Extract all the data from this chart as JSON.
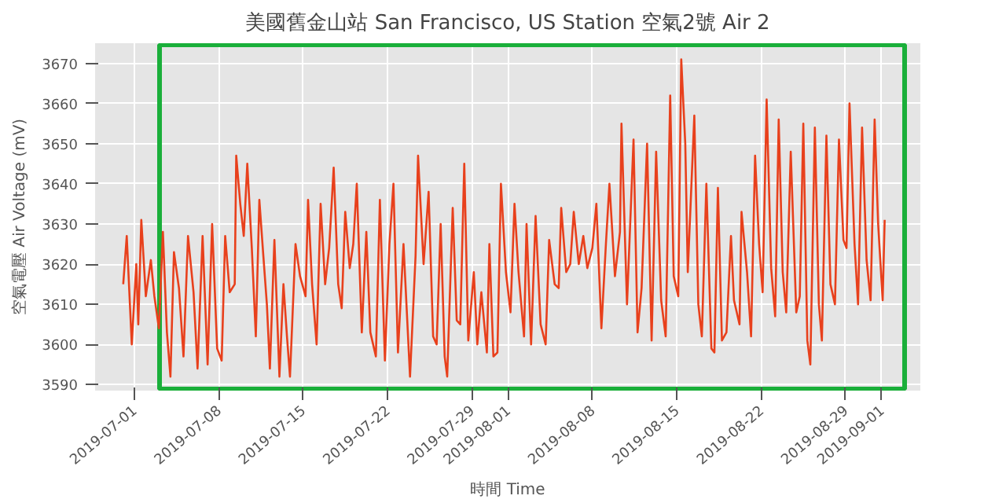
{
  "chart_data": {
    "type": "line",
    "title": "美國舊金山站 San Francisco, US Station 空氣2號 Air 2",
    "xlabel": "時間 Time",
    "ylabel": "空氣電壓 Air Voltage (mV)",
    "x": [
      "2019-06-30T02:00",
      "2019-06-30T09:00",
      "2019-06-30T19:00",
      "2019-07-01T04:00",
      "2019-07-01T08:00",
      "2019-07-01T14:00",
      "2019-07-01T23:00",
      "2019-07-02T09:00",
      "2019-07-02T16:00",
      "2019-07-03T01:00",
      "2019-07-03T09:00",
      "2019-07-03T17:00",
      "2019-07-04T00:00",
      "2019-07-04T07:00",
      "2019-07-04T17:00",
      "2019-07-05T02:00",
      "2019-07-05T11:00",
      "2019-07-05T22:00",
      "2019-07-06T06:00",
      "2019-07-06T16:00",
      "2019-07-07T02:00",
      "2019-07-07T11:00",
      "2019-07-07T21:00",
      "2019-07-08T06:00",
      "2019-07-08T13:00",
      "2019-07-08T22:00",
      "2019-07-09T08:00",
      "2019-07-09T11:00",
      "2019-07-09T19:00",
      "2019-07-10T02:00",
      "2019-07-10T09:00",
      "2019-07-10T18:00",
      "2019-07-11T02:00",
      "2019-07-11T09:00",
      "2019-07-11T17:00",
      "2019-07-12T00:00",
      "2019-07-12T06:00",
      "2019-07-12T15:00",
      "2019-07-13T01:00",
      "2019-07-13T09:00",
      "2019-07-13T16:00",
      "2019-07-13T22:00",
      "2019-07-14T09:00",
      "2019-07-14T18:00",
      "2019-07-15T05:00",
      "2019-07-15T10:00",
      "2019-07-15T18:00",
      "2019-07-16T03:00",
      "2019-07-16T11:00",
      "2019-07-16T20:00",
      "2019-07-17T04:00",
      "2019-07-17T13:00",
      "2019-07-17T22:00",
      "2019-07-18T05:00",
      "2019-07-18T12:00",
      "2019-07-18T21:00",
      "2019-07-19T04:00",
      "2019-07-19T11:00",
      "2019-07-19T21:00",
      "2019-07-20T06:00",
      "2019-07-20T14:00",
      "2019-07-21T01:00",
      "2019-07-21T09:00",
      "2019-07-21T19:00",
      "2019-07-22T04:00",
      "2019-07-22T12:00",
      "2019-07-22T21:00",
      "2019-07-23T08:00",
      "2019-07-23T21:00",
      "2019-07-24T08:00",
      "2019-07-24T13:00",
      "2019-07-25T00:00",
      "2019-07-25T10:00",
      "2019-07-25T19:00",
      "2019-07-26T02:00",
      "2019-07-26T10:00",
      "2019-07-26T18:00",
      "2019-07-26T23:00",
      "2019-07-27T10:00",
      "2019-07-27T18:00",
      "2019-07-28T01:00",
      "2019-07-28T09:00",
      "2019-07-28T17:00",
      "2019-07-29T04:00",
      "2019-07-29T11:00",
      "2019-07-29T19:00",
      "2019-07-30T06:00",
      "2019-07-30T11:00",
      "2019-07-30T19:00",
      "2019-07-31T03:00",
      "2019-07-31T10:00",
      "2019-07-31T20:00",
      "2019-08-01T05:00",
      "2019-08-01T13:00",
      "2019-08-01T21:00",
      "2019-08-02T08:00",
      "2019-08-02T13:00",
      "2019-08-02T22:00",
      "2019-08-03T07:00",
      "2019-08-03T17:00",
      "2019-08-04T03:00",
      "2019-08-04T10:00",
      "2019-08-04T21:00",
      "2019-08-05T05:00",
      "2019-08-05T10:00",
      "2019-08-05T20:00",
      "2019-08-06T04:00",
      "2019-08-06T11:00",
      "2019-08-06T21:00",
      "2019-08-07T06:00",
      "2019-08-07T14:00",
      "2019-08-08T00:00",
      "2019-08-08T08:00",
      "2019-08-08T18:00",
      "2019-08-09T03:00",
      "2019-08-09T10:00",
      "2019-08-09T21:00",
      "2019-08-10T07:00",
      "2019-08-10T10:00",
      "2019-08-10T21:00",
      "2019-08-11T10:00",
      "2019-08-11T18:00",
      "2019-08-12T02:00",
      "2019-08-12T13:00",
      "2019-08-12T22:00",
      "2019-08-13T07:00",
      "2019-08-13T17:00",
      "2019-08-14T02:00",
      "2019-08-14T11:00",
      "2019-08-14T18:00",
      "2019-08-15T03:00",
      "2019-08-15T09:00",
      "2019-08-15T17:00",
      "2019-08-15T22:00",
      "2019-08-16T11:00",
      "2019-08-16T19:00",
      "2019-08-17T02:00",
      "2019-08-17T11:00",
      "2019-08-17T21:00",
      "2019-08-18T03:00",
      "2019-08-18T10:00",
      "2019-08-18T18:00",
      "2019-08-19T03:00",
      "2019-08-19T12:00",
      "2019-08-19T18:00",
      "2019-08-20T05:00",
      "2019-08-20T09:00",
      "2019-08-20T20:00",
      "2019-08-21T04:00",
      "2019-08-21T12:00",
      "2019-08-21T20:00",
      "2019-08-22T03:00",
      "2019-08-22T11:00",
      "2019-08-22T20:00",
      "2019-08-23T04:00",
      "2019-08-23T11:00",
      "2019-08-23T19:00",
      "2019-08-24T02:00",
      "2019-08-24T11:00",
      "2019-08-24T22:00",
      "2019-08-25T05:00",
      "2019-08-25T12:00",
      "2019-08-25T20:00",
      "2019-08-26T02:00",
      "2019-08-26T11:00",
      "2019-08-26T19:00",
      "2019-08-27T01:00",
      "2019-08-27T10:00",
      "2019-08-27T18:00",
      "2019-08-28T03:00",
      "2019-08-28T11:00",
      "2019-08-28T20:00",
      "2019-08-29T02:00",
      "2019-08-29T08:00",
      "2019-08-29T18:00",
      "2019-08-30T01:00",
      "2019-08-30T09:00",
      "2019-08-30T18:00",
      "2019-08-31T02:00",
      "2019-08-31T10:00",
      "2019-08-31T17:00",
      "2019-09-01T02:00",
      "2019-09-01T06:00"
    ],
    "series": [
      {
        "color": "#e8401c",
        "values": [
          3615,
          3627,
          3600,
          3620,
          3605,
          3631,
          3612,
          3621,
          3612,
          3604,
          3628,
          3603,
          3592,
          3623,
          3614,
          3597,
          3627,
          3613,
          3594,
          3627,
          3595,
          3630,
          3599,
          3596,
          3627,
          3613,
          3615,
          3647,
          3635,
          3627,
          3645,
          3624,
          3602,
          3636,
          3622,
          3610,
          3594,
          3626,
          3592,
          3615,
          3602,
          3592,
          3625,
          3617,
          3612,
          3636,
          3615,
          3600,
          3635,
          3615,
          3624,
          3644,
          3615,
          3609,
          3633,
          3619,
          3625,
          3640,
          3603,
          3628,
          3603,
          3597,
          3636,
          3596,
          3625,
          3640,
          3598,
          3625,
          3592,
          3622,
          3647,
          3620,
          3638,
          3602,
          3600,
          3630,
          3597,
          3592,
          3634,
          3606,
          3605,
          3645,
          3601,
          3618,
          3600,
          3613,
          3598,
          3625,
          3597,
          3598,
          3640,
          3618,
          3608,
          3635,
          3618,
          3602,
          3630,
          3600,
          3632,
          3605,
          3600,
          3626,
          3615,
          3614,
          3634,
          3618,
          3620,
          3633,
          3620,
          3627,
          3619,
          3624,
          3635,
          3604,
          3625,
          3640,
          3617,
          3628,
          3655,
          3610,
          3651,
          3603,
          3614,
          3650,
          3601,
          3648,
          3611,
          3602,
          3662,
          3617,
          3612,
          3671,
          3650,
          3618,
          3657,
          3610,
          3602,
          3640,
          3599,
          3598,
          3639,
          3601,
          3603,
          3627,
          3611,
          3605,
          3633,
          3618,
          3602,
          3647,
          3625,
          3613,
          3661,
          3619,
          3607,
          3656,
          3618,
          3608,
          3648,
          3608,
          3612,
          3655,
          3601,
          3595,
          3654,
          3610,
          3601,
          3652,
          3615,
          3610,
          3651,
          3626,
          3624,
          3660,
          3625,
          3610,
          3654,
          3621,
          3611,
          3656,
          3630,
          3611,
          3631
        ]
      }
    ],
    "xlim": [
      "2019-06-27T18:00",
      "2019-09-04T05:00"
    ],
    "xticks": [
      "2019-07-01",
      "2019-07-08",
      "2019-07-15",
      "2019-07-22",
      "2019-07-29",
      "2019-08-01",
      "2019-08-08",
      "2019-08-15",
      "2019-08-22",
      "2019-08-29",
      "2019-09-01"
    ],
    "ylim": [
      3588.5,
      3675
    ],
    "yticks": [
      3590,
      3600,
      3610,
      3620,
      3630,
      3640,
      3650,
      3660,
      3670
    ],
    "grid": true,
    "line_style": "solid"
  }
}
